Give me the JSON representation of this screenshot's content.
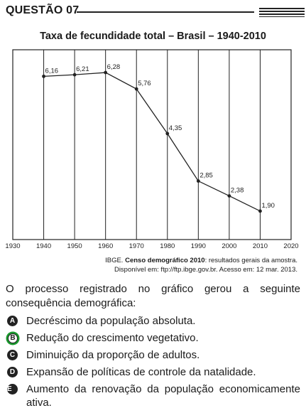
{
  "header": {
    "title": "QUESTÃO 07"
  },
  "chart_data": {
    "type": "line",
    "title": "Taxa de fecundidade total – Brasil – 1940-2010",
    "x_ticks": [
      "1930",
      "1940",
      "1950",
      "1960",
      "1970",
      "1980",
      "1990",
      "2000",
      "2010",
      "2020"
    ],
    "xlim": [
      1930,
      2020
    ],
    "ylim": [
      1.0,
      7.0
    ],
    "series": [
      {
        "x": [
          1940,
          1950,
          1960,
          1970,
          1980,
          1990,
          2000,
          2010
        ],
        "y": [
          6.16,
          6.21,
          6.28,
          5.76,
          4.35,
          2.85,
          2.38,
          1.9
        ],
        "labels": [
          "6,16",
          "6,21",
          "6,28",
          "5,76",
          "4,35",
          "2,85",
          "2,38",
          "1,90"
        ]
      }
    ],
    "grid": "vertical"
  },
  "source": {
    "prefix": "IBGE. ",
    "bold": "Censo demográfico 2010",
    "suffix": ": resultados gerais da amostra.",
    "line2": "Disponível em: ftp://ftp.ibge.gov.br. Acesso em: 12 mar. 2013."
  },
  "question": "O processo registrado no gráfico gerou a seguinte consequência demográfica:",
  "options": [
    {
      "letter": "A",
      "text": "Decréscimo da população absoluta."
    },
    {
      "letter": "B",
      "text": "Redução do crescimento vegetativo."
    },
    {
      "letter": "C",
      "text": "Diminuição da proporção de adultos."
    },
    {
      "letter": "D",
      "text": "Expansão de políticas de controle da natalidade."
    },
    {
      "letter": "E",
      "text": "Aumento da renovação da população economicamente ativa."
    }
  ],
  "correct_answer": "B"
}
